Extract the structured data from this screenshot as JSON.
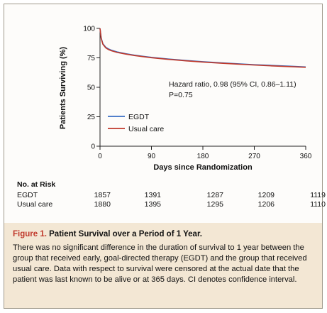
{
  "chart_data": {
    "type": "line",
    "xlabel": "Days since Randomization",
    "ylabel": "Patients Surviving (%)",
    "xlim": [
      0,
      360
    ],
    "ylim": [
      0,
      100
    ],
    "xticks": [
      0,
      90,
      180,
      270,
      360
    ],
    "yticks": [
      0,
      25,
      50,
      75,
      100
    ],
    "grid": false,
    "legend_position": "lower-left",
    "series": [
      {
        "name": "EGDT",
        "color": "#3a6fc4",
        "x": [
          0,
          2,
          5,
          10,
          15,
          20,
          30,
          45,
          60,
          75,
          90,
          120,
          150,
          180,
          210,
          240,
          270,
          300,
          330,
          360
        ],
        "y": [
          100,
          92,
          87,
          84,
          82.5,
          81.5,
          80,
          78.5,
          77.3,
          76.3,
          75.4,
          74,
          72.8,
          71.7,
          70.8,
          70,
          69.2,
          68.6,
          68,
          67.3
        ]
      },
      {
        "name": "Usual care",
        "color": "#c0392b",
        "x": [
          0,
          2,
          5,
          10,
          15,
          20,
          30,
          45,
          60,
          75,
          90,
          120,
          150,
          180,
          210,
          240,
          270,
          300,
          330,
          360
        ],
        "y": [
          100,
          91.5,
          86.5,
          83.5,
          82,
          81,
          79.6,
          78.2,
          77,
          76,
          75.1,
          73.7,
          72.5,
          71.4,
          70.5,
          69.7,
          68.9,
          68.2,
          67.6,
          67
        ]
      }
    ],
    "annotations": [
      "Hazard ratio, 0.98 (95% CI, 0.86–1.11)",
      "P=0.75"
    ]
  },
  "risk_table": {
    "title": "No. at Risk",
    "rows": [
      {
        "label": "EGDT",
        "values": [
          "1857",
          "1391",
          "1287",
          "1209",
          "1119"
        ]
      },
      {
        "label": "Usual care",
        "values": [
          "1880",
          "1395",
          "1295",
          "1206",
          "1110"
        ]
      }
    ]
  },
  "caption": {
    "label": "Figure 1.",
    "title": "Patient Survival over a Period of 1 Year.",
    "body": "There was no significant difference in the duration of survival to 1 year between the group that received early, goal-directed therapy (EGDT) and the group that received usual care. Data with respect to survival were censored at the actual date that the patient was last known to be alive or at 365 days. CI denotes confidence interval."
  }
}
